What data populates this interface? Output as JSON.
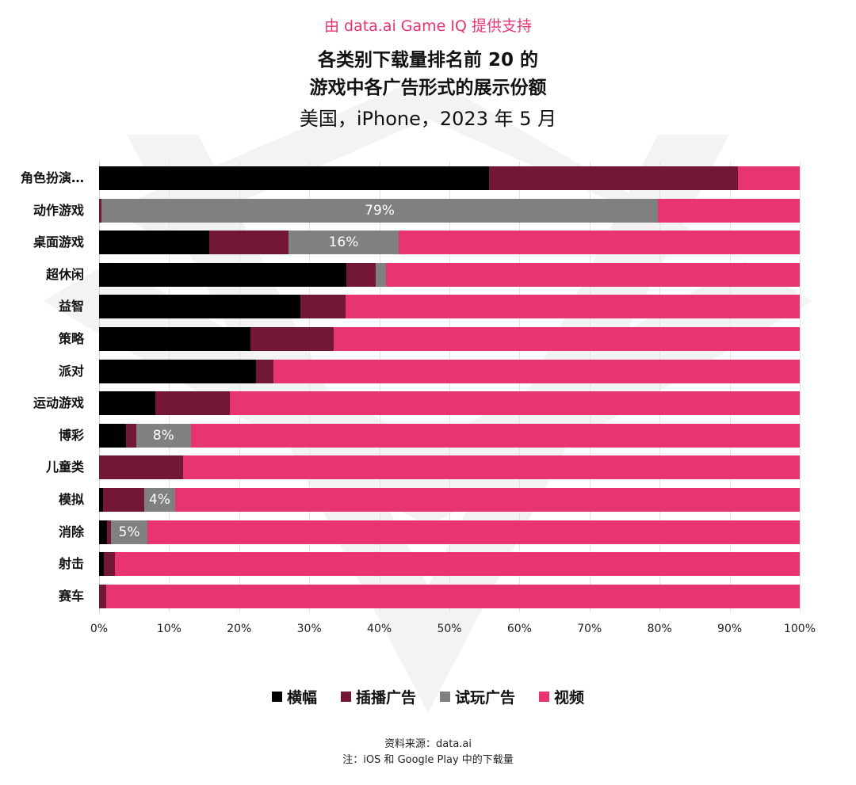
{
  "header": {
    "credit": "由 data.ai Game IQ 提供支持",
    "title_line1": "各类别下载量排名前 20 的",
    "title_line2": "游戏中各广告形式的展示份额",
    "subtitle": "美国，iPhone，2023 年 5 月"
  },
  "colors": {
    "banner": "#000000",
    "interstitial": "#731736",
    "playable": "#808080",
    "video": "#e93472",
    "accent": "#e93472"
  },
  "legend": [
    {
      "key": "banner",
      "label": "横幅",
      "color": "#000000"
    },
    {
      "key": "interstitial",
      "label": "插播广告",
      "color": "#731736"
    },
    {
      "key": "playable",
      "label": "试玩广告",
      "color": "#808080"
    },
    {
      "key": "video",
      "label": "视频",
      "color": "#e93472"
    }
  ],
  "footer": {
    "source": "资料来源：data.ai",
    "note": "注：iOS 和 Google Play 中的下载量"
  },
  "chart_data": {
    "type": "bar",
    "orientation": "horizontal",
    "stacked": true,
    "normalized": true,
    "title": "各类别下载量排名前 20 的游戏中各广告形式的展示份额",
    "subtitle": "美国，iPhone，2023 年 5 月",
    "xlabel": "",
    "ylabel": "",
    "xlim": [
      0,
      100
    ],
    "x_ticks": [
      "0%",
      "10%",
      "20%",
      "30%",
      "40%",
      "50%",
      "60%",
      "70%",
      "80%",
      "90%",
      "100%"
    ],
    "grid": "vertical",
    "legend_position": "bottom",
    "categories": [
      "角色扮演…",
      "动作游戏",
      "桌面游戏",
      "超休闲",
      "益智",
      "策略",
      "派对",
      "运动游戏",
      "博彩",
      "儿童类",
      "模拟",
      "消除",
      "射击",
      "赛车"
    ],
    "series": [
      {
        "name": "横幅",
        "color": "#000000",
        "values": [
          55.7,
          0,
          15.7,
          35.3,
          28.7,
          21.6,
          22.4,
          8.0,
          3.8,
          0,
          0.6,
          1.1,
          0.7,
          0
        ]
      },
      {
        "name": "插播广告",
        "color": "#731736",
        "values": [
          35.5,
          0.3,
          11.3,
          4.2,
          6.5,
          11.9,
          2.5,
          10.7,
          1.5,
          12.0,
          5.8,
          0.6,
          1.6,
          1.0
        ]
      },
      {
        "name": "试玩广告",
        "color": "#808080",
        "values": [
          0,
          79.5,
          15.8,
          1.5,
          0,
          0,
          0,
          0,
          7.8,
          0,
          4.5,
          5.2,
          0,
          0
        ]
      },
      {
        "name": "视频",
        "color": "#e93472",
        "values": [
          8.8,
          20.2,
          57.2,
          59.0,
          64.8,
          66.5,
          75.1,
          81.3,
          86.9,
          88.0,
          89.1,
          93.1,
          97.7,
          99.0
        ]
      }
    ],
    "data_labels": [
      {
        "category": "动作游戏",
        "series": "试玩广告",
        "text": "79%"
      },
      {
        "category": "桌面游戏",
        "series": "试玩广告",
        "text": "16%"
      },
      {
        "category": "博彩",
        "series": "试玩广告",
        "text": "8%"
      },
      {
        "category": "模拟",
        "series": "试玩广告",
        "text": "4%"
      },
      {
        "category": "消除",
        "series": "试玩广告",
        "text": "5%"
      }
    ]
  }
}
